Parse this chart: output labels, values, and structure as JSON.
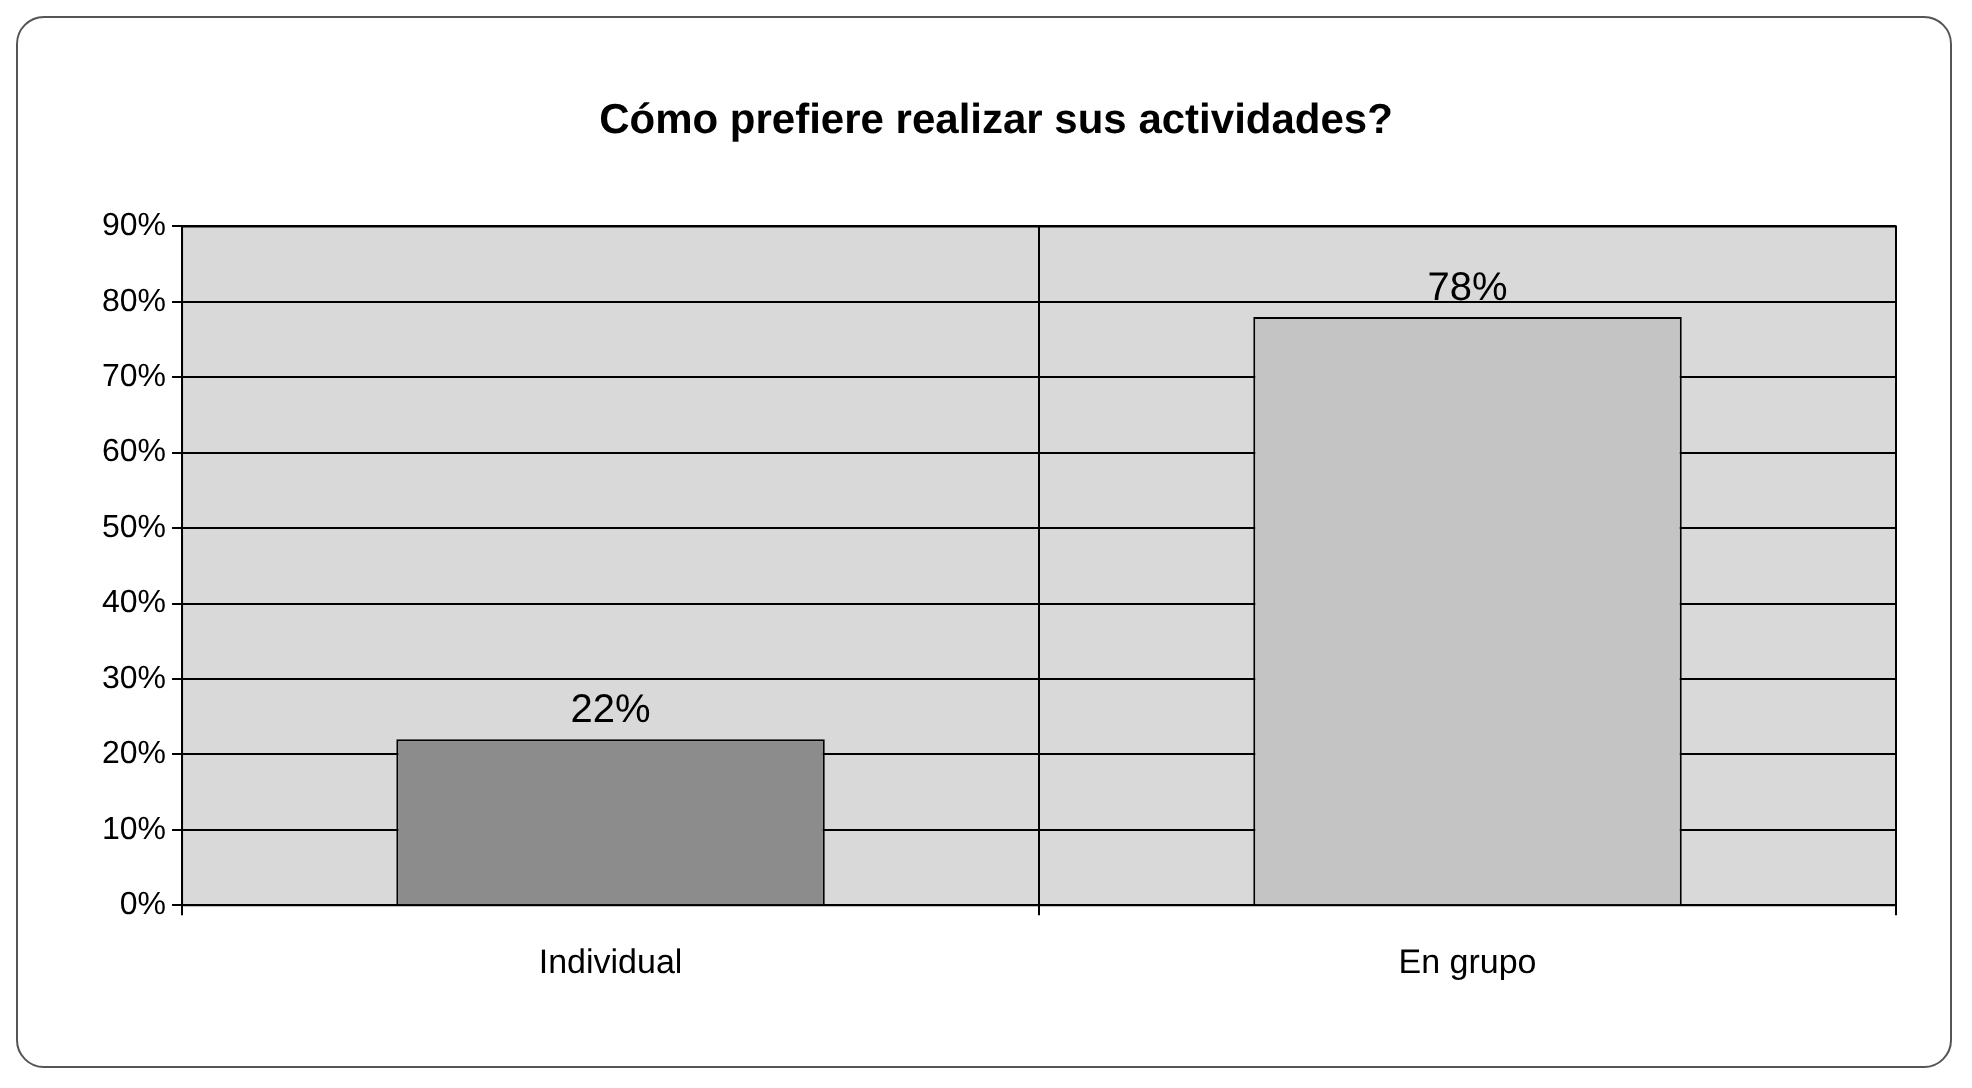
{
  "chart_data": {
    "type": "bar",
    "title": "Cómo prefiere realizar sus actividades?",
    "categories": [
      "Individual",
      "En grupo"
    ],
    "values": [
      22,
      78
    ],
    "colors": [
      "#8c8c8c",
      "#c4c4c4"
    ],
    "value_labels": [
      "22%",
      "78%"
    ],
    "ylim": [
      0,
      90
    ],
    "yticks": [
      {
        "value": 0,
        "label": "0%"
      },
      {
        "value": 10,
        "label": "10%"
      },
      {
        "value": 20,
        "label": "20%"
      },
      {
        "value": 30,
        "label": "30%"
      },
      {
        "value": 40,
        "label": "40%"
      },
      {
        "value": 50,
        "label": "50%"
      },
      {
        "value": 60,
        "label": "60%"
      },
      {
        "value": 70,
        "label": "70%"
      },
      {
        "value": 80,
        "label": "80%"
      },
      {
        "value": 90,
        "label": "90%"
      }
    ],
    "grid": true
  }
}
